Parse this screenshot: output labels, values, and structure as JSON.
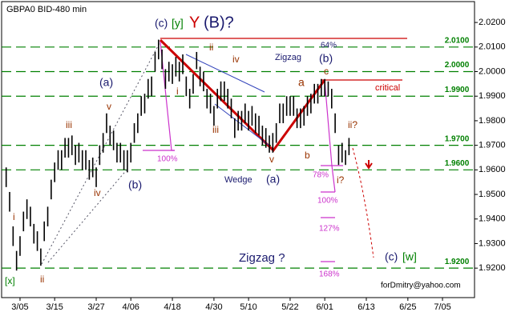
{
  "chart_data": {
    "type": "ohlc",
    "title": "GBPA0 BID-480 min",
    "color": "#000000",
    "x": [
      -4,
      -3,
      -2,
      -1,
      0,
      1,
      2,
      3,
      4,
      5,
      6,
      7,
      8,
      9,
      10,
      11,
      12,
      13,
      14,
      15,
      16,
      17,
      18,
      19,
      20,
      21,
      22,
      23,
      24,
      25,
      26,
      27,
      28,
      29,
      30,
      31,
      32,
      33,
      34,
      35,
      36,
      37,
      38,
      39,
      40,
      41,
      42,
      43,
      44,
      45,
      46,
      47,
      48,
      49,
      50,
      51,
      52,
      53,
      54,
      55,
      56,
      57,
      58,
      59,
      60,
      61,
      62,
      63,
      64,
      65,
      66,
      67,
      68,
      69,
      70,
      71,
      72,
      73,
      74,
      75,
      76,
      77,
      78,
      79,
      80,
      81,
      82,
      83,
      84,
      85,
      86,
      87,
      88,
      89,
      90,
      91,
      92,
      93,
      94,
      95
    ],
    "high": [
      1.961,
      1.951,
      1.937,
      1.927,
      1.933,
      1.943,
      1.948,
      1.945,
      1.938,
      1.935,
      1.928,
      1.939,
      1.945,
      1.956,
      1.963,
      1.968,
      1.968,
      1.973,
      1.973,
      1.974,
      1.97,
      1.971,
      1.968,
      1.968,
      1.964,
      1.965,
      1.961,
      1.97,
      1.975,
      1.983,
      1.978,
      1.976,
      1.971,
      1.971,
      1.968,
      1.968,
      1.971,
      1.979,
      1.983,
      1.99,
      1.991,
      1.997,
      1.998,
      2.008,
      2.013,
      2.009,
      2.001,
      2.004,
      2.003,
      2.006,
      2.004,
      2.007,
      1.998,
      1.993,
      1.999,
      2.008,
      2.002,
      2.0,
      1.993,
      1.991,
      1.986,
      1.993,
      1.996,
      1.996,
      1.993,
      1.989,
      1.981,
      1.984,
      1.984,
      1.987,
      1.984,
      1.986,
      1.983,
      1.982,
      1.978,
      1.977,
      1.974,
      1.975,
      1.979,
      1.987,
      1.987,
      1.99,
      1.99,
      1.99,
      1.985,
      1.985,
      1.986,
      1.99,
      1.991,
      1.995,
      1.995,
      1.997,
      1.997,
      1.996,
      1.993,
      1.983,
      1.97,
      1.971,
      1.968,
      1.973
    ],
    "low": [
      1.953,
      1.943,
      1.929,
      1.919,
      1.925,
      1.935,
      1.94,
      1.937,
      1.93,
      1.927,
      1.921,
      1.931,
      1.937,
      1.948,
      1.955,
      1.96,
      1.96,
      1.965,
      1.965,
      1.966,
      1.962,
      1.963,
      1.96,
      1.96,
      1.956,
      1.957,
      1.953,
      1.962,
      1.967,
      1.975,
      1.97,
      1.968,
      1.963,
      1.963,
      1.96,
      1.959,
      1.963,
      1.971,
      1.975,
      1.982,
      1.983,
      1.989,
      1.99,
      2.0,
      2.005,
      2.001,
      1.993,
      1.996,
      1.995,
      1.998,
      1.996,
      1.999,
      1.99,
      1.985,
      1.991,
      2.001,
      1.994,
      1.992,
      1.985,
      1.983,
      1.978,
      1.985,
      1.988,
      1.988,
      1.985,
      1.981,
      1.973,
      1.976,
      1.976,
      1.979,
      1.976,
      1.978,
      1.975,
      1.974,
      1.97,
      1.969,
      1.967,
      1.967,
      1.971,
      1.979,
      1.979,
      1.982,
      1.982,
      1.982,
      1.977,
      1.977,
      1.978,
      1.982,
      1.983,
      1.987,
      1.987,
      1.99,
      1.99,
      1.99,
      1.985,
      1.975,
      1.962,
      1.963,
      1.962,
      1.966
    ],
    "xlim": [
      -5.32,
      131.25
    ],
    "xticks": [
      {
        "value": 0,
        "label": "3/05"
      },
      {
        "value": 10,
        "label": "3/15"
      },
      {
        "value": 22,
        "label": "3/27"
      },
      {
        "value": 32,
        "label": "4/06"
      },
      {
        "value": 44,
        "label": "4/18"
      },
      {
        "value": 56,
        "label": "4/30"
      },
      {
        "value": 66,
        "label": "5/10"
      },
      {
        "value": 78,
        "label": "5/22"
      },
      {
        "value": 88,
        "label": "6/01"
      },
      {
        "value": 100,
        "label": "6/13"
      },
      {
        "value": 112,
        "label": "6/25"
      },
      {
        "value": 122,
        "label": "7/05"
      }
    ],
    "ylim": [
      1.908,
      2.0285
    ],
    "yticks": [
      {
        "value": 2.02,
        "label": "2.0200"
      },
      {
        "value": 2.01,
        "label": "2.0100"
      },
      {
        "value": 2.0,
        "label": "2.0000"
      },
      {
        "value": 1.99,
        "label": "1.9900"
      },
      {
        "value": 1.98,
        "label": "1.9800"
      },
      {
        "value": 1.97,
        "label": "1.9700"
      },
      {
        "value": 1.96,
        "label": "1.9600"
      },
      {
        "value": 1.95,
        "label": "1.9500"
      },
      {
        "value": 1.94,
        "label": "1.9400"
      },
      {
        "value": 1.93,
        "label": "1.9300"
      },
      {
        "value": 1.92,
        "label": "1.9200"
      }
    ],
    "levels": [
      {
        "value": 2.01,
        "label": "2.0100"
      },
      {
        "value": 2.0,
        "label": "2.0000"
      },
      {
        "value": 1.99,
        "label": "1.9900"
      },
      {
        "value": 1.97,
        "label": "1.9700"
      },
      {
        "value": 1.96,
        "label": "1.9600"
      },
      {
        "value": 1.92,
        "label": "1.9200"
      }
    ],
    "level_color": "#008000",
    "annotations": [
      "(c)",
      "[y]",
      "Y",
      "(B)?",
      "64%",
      "Zigzag",
      "(b)",
      "c",
      "ii",
      "iv",
      "i",
      "iii",
      "v",
      "(a)",
      "a",
      "b",
      "critical",
      "(a)",
      "v",
      "iii",
      "iv",
      "(b)",
      "i",
      "ii",
      "[x]",
      "100%",
      "Wedge",
      "78%",
      "i?",
      "ii?",
      "100%",
      "127%",
      "168%",
      "Zigzag ?",
      "(c)",
      "[w]",
      "forDmitry@yahoo.com"
    ]
  }
}
